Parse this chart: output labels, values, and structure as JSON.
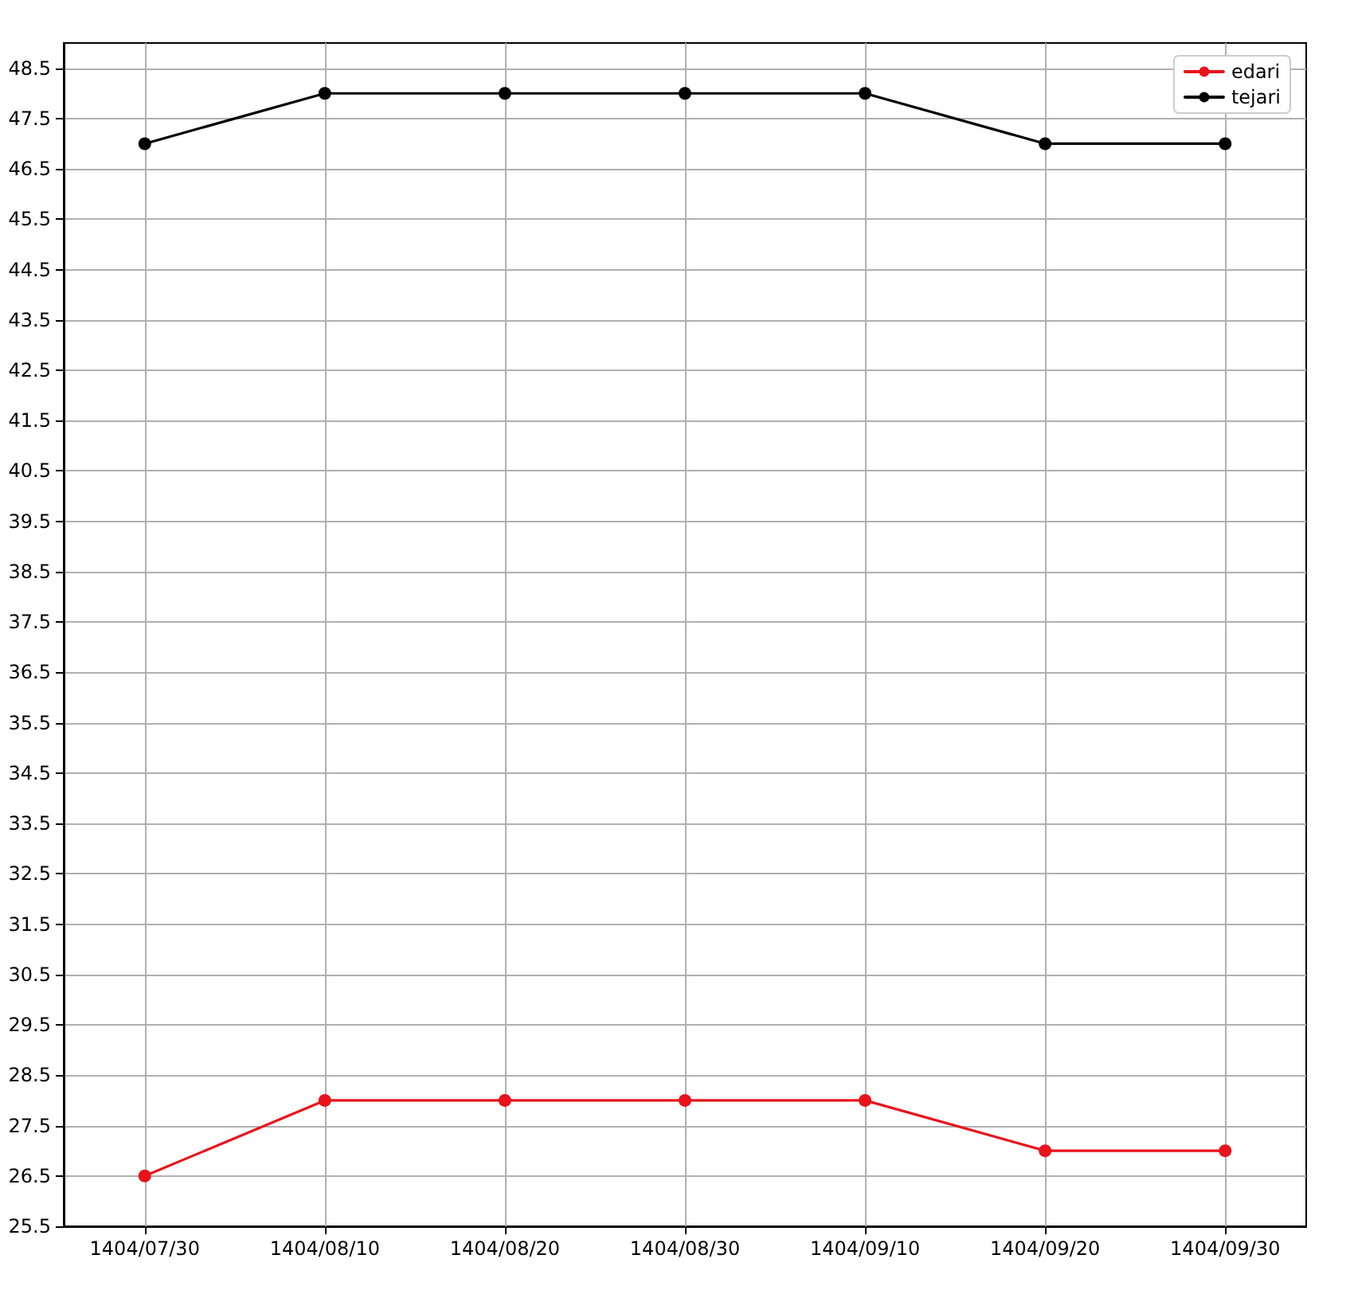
{
  "chart_data": {
    "type": "line",
    "categories": [
      "1404/07/30",
      "1404/08/10",
      "1404/08/20",
      "1404/08/30",
      "1404/09/10",
      "1404/09/20",
      "1404/09/30"
    ],
    "series": [
      {
        "name": "edari",
        "color": "#e8131b",
        "values": [
          26.5,
          28,
          28,
          28,
          28,
          27,
          27
        ]
      },
      {
        "name": "tejari",
        "color": "#000000",
        "values": [
          47,
          48,
          48,
          48,
          48,
          47,
          47
        ]
      }
    ],
    "ylim": [
      25.5,
      49
    ],
    "yticks": [
      25.5,
      26.5,
      27.5,
      28.5,
      29.5,
      30.5,
      31.5,
      32.5,
      33.5,
      34.5,
      35.5,
      36.5,
      37.5,
      38.5,
      39.5,
      40.5,
      41.5,
      42.5,
      43.5,
      44.5,
      45.5,
      46.5,
      47.5,
      48.5
    ],
    "grid": true,
    "legend": "top right",
    "marker": "circle",
    "line_style": "solid"
  }
}
